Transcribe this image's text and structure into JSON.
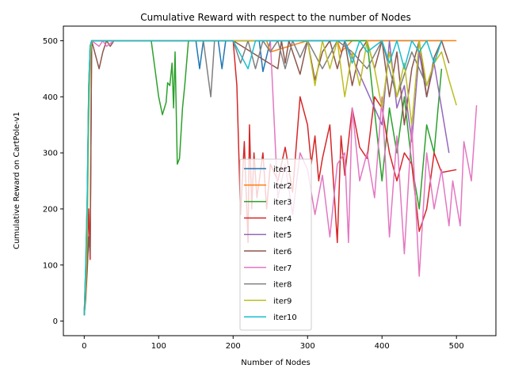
{
  "chart_data": {
    "type": "line",
    "title": "Cumulative Reward with respect to the number of Nodes",
    "xlabel": "Number of Nodes",
    "ylabel": "Cumulative Reward on CartPole-v1",
    "xlim": [
      -28,
      553
    ],
    "ylim": [
      -26,
      526
    ],
    "xticks": [
      0,
      100,
      200,
      300,
      400,
      500
    ],
    "yticks": [
      0,
      100,
      200,
      300,
      400,
      500
    ],
    "legend_position": "lower-center",
    "grid": false,
    "series": [
      {
        "name": "iter1",
        "color": "#1f77b4",
        "x": [
          0,
          2,
          4,
          6,
          8,
          10,
          150,
          155,
          160,
          170,
          180,
          185,
          190,
          230,
          235,
          240,
          250,
          280,
          300,
          330,
          360,
          400,
          440,
          470,
          480
        ],
        "y": [
          10,
          80,
          200,
          400,
          480,
          500,
          500,
          450,
          500,
          500,
          500,
          450,
          500,
          500,
          500,
          445,
          500,
          500,
          500,
          500,
          500,
          500,
          500,
          500,
          500
        ]
      },
      {
        "name": "iter2",
        "color": "#ff7f0e",
        "x": [
          0,
          2,
          4,
          6,
          8,
          10,
          200,
          245,
          250,
          300,
          340,
          345,
          360,
          400,
          420,
          440,
          460,
          470,
          480,
          500
        ],
        "y": [
          12,
          60,
          180,
          380,
          470,
          500,
          500,
          500,
          480,
          500,
          500,
          480,
          500,
          500,
          500,
          500,
          500,
          500,
          500,
          500
        ]
      },
      {
        "name": "iter3",
        "color": "#2ca02c",
        "x": [
          0,
          2,
          4,
          6,
          8,
          10,
          60,
          90,
          95,
          100,
          105,
          110,
          112,
          115,
          118,
          120,
          122,
          125,
          128,
          132,
          135,
          140,
          150,
          200,
          280,
          300,
          350,
          380,
          400,
          410,
          420,
          430,
          440,
          450,
          460,
          470,
          480
        ],
        "y": [
          10,
          70,
          200,
          420,
          490,
          500,
          500,
          500,
          450,
          400,
          368,
          390,
          425,
          420,
          460,
          380,
          480,
          280,
          290,
          380,
          420,
          500,
          500,
          500,
          500,
          500,
          500,
          500,
          250,
          380,
          300,
          400,
          280,
          200,
          350,
          300,
          450
        ]
      },
      {
        "name": "iter4",
        "color": "#d62728",
        "x": [
          0,
          2,
          4,
          6,
          8,
          10,
          20,
          200,
          205,
          210,
          215,
          220,
          222,
          225,
          228,
          232,
          240,
          245,
          250,
          260,
          270,
          280,
          290,
          300,
          305,
          310,
          315,
          320,
          330,
          340,
          345,
          350,
          360,
          370,
          380,
          390,
          400,
          410,
          420,
          430,
          440,
          450,
          460,
          470,
          480,
          500
        ],
        "y": [
          10,
          50,
          120,
          200,
          110,
          500,
          500,
          500,
          420,
          190,
          320,
          140,
          350,
          200,
          300,
          220,
          300,
          200,
          280,
          250,
          310,
          230,
          400,
          350,
          280,
          330,
          250,
          290,
          350,
          140,
          330,
          260,
          380,
          310,
          290,
          400,
          380,
          300,
          250,
          300,
          280,
          160,
          200,
          300,
          265,
          270
        ]
      },
      {
        "name": "iter5",
        "color": "#9467bd",
        "x": [
          0,
          2,
          4,
          6,
          8,
          10,
          100,
          200,
          300,
          350,
          400,
          410,
          420,
          430,
          440,
          450,
          460,
          470,
          480,
          490
        ],
        "y": [
          10,
          90,
          210,
          410,
          490,
          500,
          500,
          500,
          500,
          500,
          350,
          500,
          380,
          420,
          320,
          480,
          400,
          460,
          380,
          300
        ]
      },
      {
        "name": "iter6",
        "color": "#8c564b",
        "x": [
          0,
          2,
          4,
          6,
          8,
          10,
          20,
          25,
          30,
          35,
          40,
          60,
          100,
          200,
          260,
          265,
          270,
          275,
          280,
          290,
          300,
          310,
          320,
          330,
          340,
          350,
          360,
          370,
          380,
          390,
          400,
          410,
          420,
          430,
          440,
          450,
          460,
          470,
          480,
          490
        ],
        "y": [
          10,
          40,
          90,
          150,
          120,
          500,
          450,
          480,
          500,
          490,
          500,
          500,
          500,
          500,
          450,
          500,
          460,
          500,
          480,
          440,
          500,
          430,
          480,
          500,
          450,
          500,
          420,
          480,
          500,
          450,
          500,
          400,
          480,
          350,
          450,
          500,
          400,
          470,
          500,
          460
        ]
      },
      {
        "name": "iter7",
        "color": "#e377c2",
        "x": [
          0,
          2,
          4,
          6,
          8,
          10,
          20,
          25,
          30,
          40,
          60,
          100,
          200,
          250,
          260,
          270,
          280,
          290,
          300,
          310,
          320,
          330,
          340,
          350,
          355,
          360,
          370,
          380,
          390,
          400,
          410,
          420,
          430,
          440,
          450,
          460,
          470,
          480,
          490,
          495,
          500,
          505,
          510,
          520,
          527
        ],
        "y": [
          10,
          80,
          200,
          400,
          480,
          500,
          490,
          500,
          490,
          500,
          500,
          500,
          500,
          500,
          220,
          280,
          190,
          300,
          270,
          190,
          260,
          150,
          280,
          300,
          140,
          380,
          250,
          300,
          220,
          400,
          150,
          330,
          120,
          350,
          80,
          300,
          200,
          270,
          170,
          250,
          210,
          170,
          320,
          250,
          385
        ]
      },
      {
        "name": "iter8",
        "color": "#7f7f7f",
        "x": [
          0,
          2,
          4,
          6,
          8,
          10,
          160,
          170,
          175,
          180,
          200,
          210,
          220,
          230,
          240,
          250,
          260,
          270,
          280,
          290,
          300,
          320,
          340,
          360,
          380,
          400,
          420,
          440,
          460,
          470,
          480
        ],
        "y": [
          10,
          100,
          220,
          410,
          490,
          500,
          500,
          400,
          500,
          500,
          500,
          460,
          500,
          450,
          500,
          480,
          500,
          450,
          500,
          470,
          500,
          450,
          500,
          480,
          450,
          500,
          400,
          480,
          420,
          460,
          500
        ]
      },
      {
        "name": "iter9",
        "color": "#bcbd22",
        "x": [
          0,
          2,
          4,
          6,
          8,
          10,
          200,
          300,
          310,
          320,
          330,
          340,
          350,
          360,
          370,
          380,
          390,
          400,
          410,
          420,
          430,
          440,
          450,
          460,
          470,
          480,
          490,
          500
        ],
        "y": [
          10,
          60,
          150,
          350,
          470,
          500,
          500,
          500,
          420,
          500,
          450,
          500,
          400,
          480,
          420,
          500,
          450,
          380,
          480,
          400,
          460,
          350,
          500,
          420,
          460,
          480,
          430,
          385
        ]
      },
      {
        "name": "iter10",
        "color": "#17becf",
        "x": [
          0,
          2,
          4,
          6,
          8,
          10,
          100,
          200,
          220,
          230,
          300,
          350,
          360,
          370,
          380,
          400,
          410,
          420,
          430,
          440,
          450,
          460,
          470,
          480
        ],
        "y": [
          10,
          100,
          220,
          420,
          490,
          500,
          500,
          500,
          450,
          500,
          500,
          500,
          460,
          500,
          480,
          500,
          460,
          500,
          450,
          500,
          480,
          500,
          460,
          500
        ]
      }
    ]
  }
}
